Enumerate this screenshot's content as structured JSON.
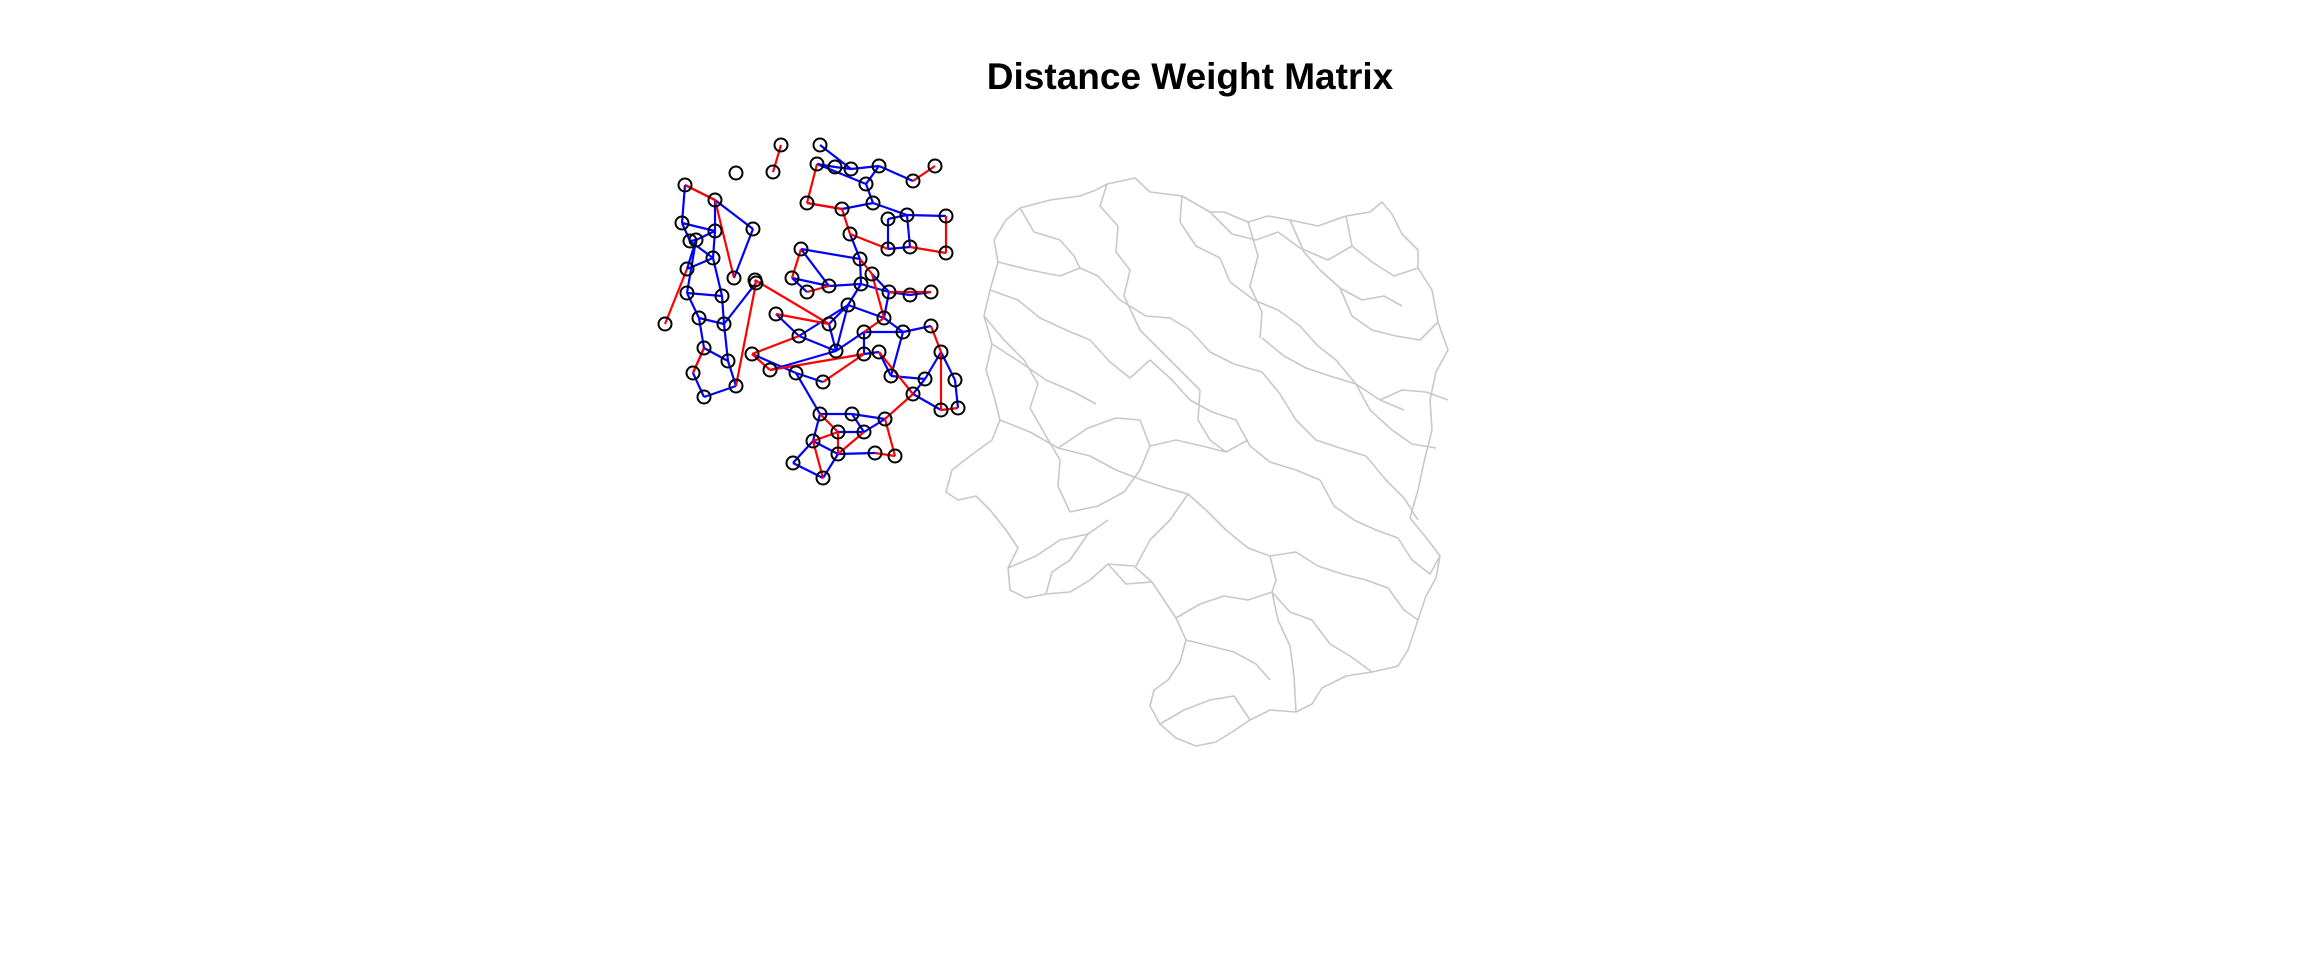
{
  "title": "Distance Weight Matrix",
  "legend": null,
  "colors": {
    "background": "#ffffff",
    "boundary": "#c8c8c8",
    "node": "#000000",
    "edge_primary": "#0000ff",
    "edge_secondary": "#ff0000"
  },
  "icons": {
    "node": "open-circle-node"
  }
}
